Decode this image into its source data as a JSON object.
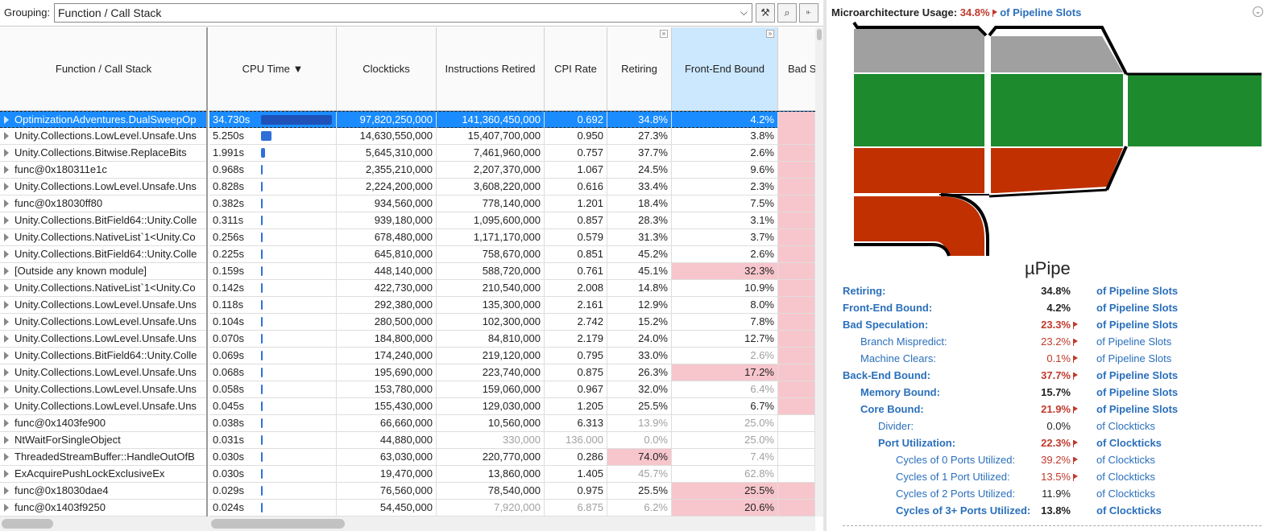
{
  "grouping": {
    "label": "Grouping:",
    "value": "Function / Call Stack",
    "buttons": [
      "wrench-icon",
      "search-icon",
      "tree-icon"
    ]
  },
  "columns": {
    "function": "Function / Call Stack",
    "cpu_time": "CPU Time ▼",
    "clockticks": "Clockticks",
    "instructions": "Instructions Retired",
    "cpi": "CPI Rate",
    "retiring": "Retiring",
    "frontend": "Front-End Bound",
    "badspec": "Bad S"
  },
  "rows": [
    {
      "fn": "OptimizationAdventures.DualSweepOp",
      "cpu": "34.730s",
      "cpu_s": 34.73,
      "clk": "97,820,250,000",
      "ins": "141,360,450,000",
      "cpi": "0.692",
      "ret": "34.8%",
      "fe": "4.2%",
      "sel": true,
      "dim": [],
      "pink": [
        "bs"
      ]
    },
    {
      "fn": "Unity.Collections.LowLevel.Unsafe.Uns",
      "cpu": "5.250s",
      "cpu_s": 5.25,
      "clk": "14,630,550,000",
      "ins": "15,407,700,000",
      "cpi": "0.950",
      "ret": "27.3%",
      "fe": "3.8%",
      "dim": [],
      "pink": [
        "bs"
      ]
    },
    {
      "fn": "Unity.Collections.Bitwise.ReplaceBits",
      "cpu": "1.991s",
      "cpu_s": 1.991,
      "clk": "5,645,310,000",
      "ins": "7,461,960,000",
      "cpi": "0.757",
      "ret": "37.7%",
      "fe": "2.6%",
      "dim": [],
      "pink": [
        "bs"
      ]
    },
    {
      "fn": "func@0x180311e1c",
      "cpu": "0.968s",
      "cpu_s": 0.968,
      "clk": "2,355,210,000",
      "ins": "2,207,370,000",
      "cpi": "1.067",
      "ret": "24.5%",
      "fe": "9.6%",
      "dim": [],
      "pink": [
        "bs"
      ]
    },
    {
      "fn": "Unity.Collections.LowLevel.Unsafe.Uns",
      "cpu": "0.828s",
      "cpu_s": 0.828,
      "clk": "2,224,200,000",
      "ins": "3,608,220,000",
      "cpi": "0.616",
      "ret": "33.4%",
      "fe": "2.3%",
      "dim": [],
      "pink": [
        "bs"
      ]
    },
    {
      "fn": "func@0x18030ff80",
      "cpu": "0.382s",
      "cpu_s": 0.382,
      "clk": "934,560,000",
      "ins": "778,140,000",
      "cpi": "1.201",
      "ret": "18.4%",
      "fe": "7.5%",
      "dim": [],
      "pink": [
        "bs"
      ]
    },
    {
      "fn": "Unity.Collections.BitField64::Unity.Colle",
      "cpu": "0.311s",
      "cpu_s": 0.311,
      "clk": "939,180,000",
      "ins": "1,095,600,000",
      "cpi": "0.857",
      "ret": "28.3%",
      "fe": "3.1%",
      "dim": [],
      "pink": [
        "bs"
      ]
    },
    {
      "fn": "Unity.Collections.NativeList`1<Unity.Co",
      "cpu": "0.256s",
      "cpu_s": 0.256,
      "clk": "678,480,000",
      "ins": "1,171,170,000",
      "cpi": "0.579",
      "ret": "31.3%",
      "fe": "3.7%",
      "dim": [],
      "pink": [
        "bs"
      ]
    },
    {
      "fn": "Unity.Collections.BitField64::Unity.Colle",
      "cpu": "0.225s",
      "cpu_s": 0.225,
      "clk": "645,810,000",
      "ins": "758,670,000",
      "cpi": "0.851",
      "ret": "45.2%",
      "fe": "2.6%",
      "dim": [],
      "pink": [
        "bs"
      ]
    },
    {
      "fn": "[Outside any known module]",
      "cpu": "0.159s",
      "cpu_s": 0.159,
      "clk": "448,140,000",
      "ins": "588,720,000",
      "cpi": "0.761",
      "ret": "45.1%",
      "fe": "32.3%",
      "dim": [],
      "pink": [
        "fe",
        "bs"
      ]
    },
    {
      "fn": "Unity.Collections.NativeList`1<Unity.Co",
      "cpu": "0.142s",
      "cpu_s": 0.142,
      "clk": "422,730,000",
      "ins": "210,540,000",
      "cpi": "2.008",
      "ret": "14.8%",
      "fe": "10.9%",
      "dim": [],
      "pink": [
        "bs"
      ]
    },
    {
      "fn": "Unity.Collections.LowLevel.Unsafe.Uns",
      "cpu": "0.118s",
      "cpu_s": 0.118,
      "clk": "292,380,000",
      "ins": "135,300,000",
      "cpi": "2.161",
      "ret": "12.9%",
      "fe": "8.0%",
      "dim": [],
      "pink": [
        "bs"
      ]
    },
    {
      "fn": "Unity.Collections.LowLevel.Unsafe.Uns",
      "cpu": "0.104s",
      "cpu_s": 0.104,
      "clk": "280,500,000",
      "ins": "102,300,000",
      "cpi": "2.742",
      "ret": "15.2%",
      "fe": "7.8%",
      "dim": [],
      "pink": [
        "bs"
      ]
    },
    {
      "fn": "Unity.Collections.LowLevel.Unsafe.Uns",
      "cpu": "0.070s",
      "cpu_s": 0.07,
      "clk": "184,800,000",
      "ins": "84,810,000",
      "cpi": "2.179",
      "ret": "24.0%",
      "fe": "12.7%",
      "dim": [],
      "pink": [
        "bs"
      ]
    },
    {
      "fn": "Unity.Collections.BitField64::Unity.Colle",
      "cpu": "0.069s",
      "cpu_s": 0.069,
      "clk": "174,240,000",
      "ins": "219,120,000",
      "cpi": "0.795",
      "ret": "33.0%",
      "fe": "2.6%",
      "dim": [
        "fe"
      ],
      "pink": [
        "bs"
      ]
    },
    {
      "fn": "Unity.Collections.LowLevel.Unsafe.Uns",
      "cpu": "0.068s",
      "cpu_s": 0.068,
      "clk": "195,690,000",
      "ins": "223,740,000",
      "cpi": "0.875",
      "ret": "26.3%",
      "fe": "17.2%",
      "dim": [],
      "pink": [
        "fe",
        "bs"
      ]
    },
    {
      "fn": "Unity.Collections.LowLevel.Unsafe.Uns",
      "cpu": "0.058s",
      "cpu_s": 0.058,
      "clk": "153,780,000",
      "ins": "159,060,000",
      "cpi": "0.967",
      "ret": "32.0%",
      "fe": "6.4%",
      "dim": [
        "fe"
      ],
      "pink": [
        "bs"
      ]
    },
    {
      "fn": "Unity.Collections.LowLevel.Unsafe.Uns",
      "cpu": "0.045s",
      "cpu_s": 0.045,
      "clk": "155,430,000",
      "ins": "129,030,000",
      "cpi": "1.205",
      "ret": "25.5%",
      "fe": "6.7%",
      "dim": [],
      "pink": [
        "bs"
      ]
    },
    {
      "fn": "func@0x1403fe900",
      "cpu": "0.038s",
      "cpu_s": 0.038,
      "clk": "66,660,000",
      "ins": "10,560,000",
      "cpi": "6.313",
      "ret": "13.9%",
      "fe": "25.0%",
      "dim": [
        "ret",
        "fe"
      ],
      "pink": []
    },
    {
      "fn": "NtWaitForSingleObject",
      "cpu": "0.031s",
      "cpu_s": 0.031,
      "clk": "44,880,000",
      "ins": "330,000",
      "cpi": "136.000",
      "ret": "0.0%",
      "fe": "25.0%",
      "dim": [
        "ins",
        "cpi",
        "ret",
        "fe"
      ],
      "pink": []
    },
    {
      "fn": "ThreadedStreamBuffer::HandleOutOfB",
      "cpu": "0.030s",
      "cpu_s": 0.03,
      "clk": "63,030,000",
      "ins": "220,770,000",
      "cpi": "0.286",
      "ret": "74.0%",
      "fe": "7.4%",
      "dim": [
        "fe"
      ],
      "pink": [
        "ret"
      ]
    },
    {
      "fn": "ExAcquirePushLockExclusiveEx",
      "cpu": "0.030s",
      "cpu_s": 0.03,
      "clk": "19,470,000",
      "ins": "13,860,000",
      "cpi": "1.405",
      "ret": "45.7%",
      "fe": "62.8%",
      "dim": [
        "ret",
        "fe"
      ],
      "pink": []
    },
    {
      "fn": "func@0x18030dae4",
      "cpu": "0.029s",
      "cpu_s": 0.029,
      "clk": "76,560,000",
      "ins": "78,540,000",
      "cpi": "0.975",
      "ret": "25.5%",
      "fe": "25.5%",
      "dim": [],
      "pink": [
        "fe",
        "bs"
      ]
    },
    {
      "fn": "func@0x1403f9250",
      "cpu": "0.024s",
      "cpu_s": 0.024,
      "clk": "54,450,000",
      "ins": "7,920,000",
      "cpi": "6.875",
      "ret": "6.2%",
      "fe": "20.6%",
      "dim": [
        "ins",
        "cpi",
        "ret"
      ],
      "pink": [
        "fe",
        "bs"
      ]
    }
  ],
  "micro": {
    "title": "Microarchitecture Usage:",
    "value": "34.8%",
    "unit": "of Pipeline Slots",
    "diagram_title": "µPipe",
    "colors": {
      "gray": "#a0a0a0",
      "green": "#1e8a2e",
      "red": "#c03000",
      "link": "#2a6fbb",
      "flag": "#c0392b"
    },
    "metrics": [
      {
        "name": "Retiring:",
        "value": "34.8%",
        "unit": "of Pipeline Slots",
        "indent": 0,
        "bold": true,
        "flag": false
      },
      {
        "name": "Front-End Bound:",
        "value": "4.2%",
        "unit": "of Pipeline Slots",
        "indent": 0,
        "bold": true,
        "flag": false
      },
      {
        "name": "Bad Speculation:",
        "value": "23.3%",
        "unit": "of Pipeline Slots",
        "indent": 0,
        "bold": true,
        "flag": true
      },
      {
        "name": "Branch Mispredict:",
        "value": "23.2%",
        "unit": "of Pipeline Slots",
        "indent": 1,
        "bold": false,
        "flag": true
      },
      {
        "name": "Machine Clears:",
        "value": "0.1%",
        "unit": "of Pipeline Slots",
        "indent": 1,
        "bold": false,
        "flag": true
      },
      {
        "name": "Back-End Bound:",
        "value": "37.7%",
        "unit": "of Pipeline Slots",
        "indent": 0,
        "bold": true,
        "flag": true
      },
      {
        "name": "Memory Bound:",
        "value": "15.7%",
        "unit": "of Pipeline Slots",
        "indent": 1,
        "bold": true,
        "flag": false
      },
      {
        "name": "Core Bound:",
        "value": "21.9%",
        "unit": "of Pipeline Slots",
        "indent": 1,
        "bold": true,
        "flag": true
      },
      {
        "name": "Divider:",
        "value": "0.0%",
        "unit": "of Clockticks",
        "indent": 2,
        "bold": false,
        "flag": false
      },
      {
        "name": "Port Utilization:",
        "value": "22.3%",
        "unit": "of Clockticks",
        "indent": 2,
        "bold": true,
        "flag": true
      },
      {
        "name": "Cycles of 0 Ports Utilized:",
        "value": "39.2%",
        "unit": "of Clockticks",
        "indent": 3,
        "bold": false,
        "flag": true
      },
      {
        "name": "Cycles of 1 Port Utilized:",
        "value": "13.5%",
        "unit": "of Clockticks",
        "indent": 3,
        "bold": false,
        "flag": true
      },
      {
        "name": "Cycles of 2 Ports Utilized:",
        "value": "11.9%",
        "unit": "of Clockticks",
        "indent": 3,
        "bold": false,
        "flag": false
      },
      {
        "name": "Cycles of 3+ Ports Utilized:",
        "value": "13.8%",
        "unit": "of Clockticks",
        "indent": 3,
        "bold": true,
        "flag": false
      }
    ]
  }
}
